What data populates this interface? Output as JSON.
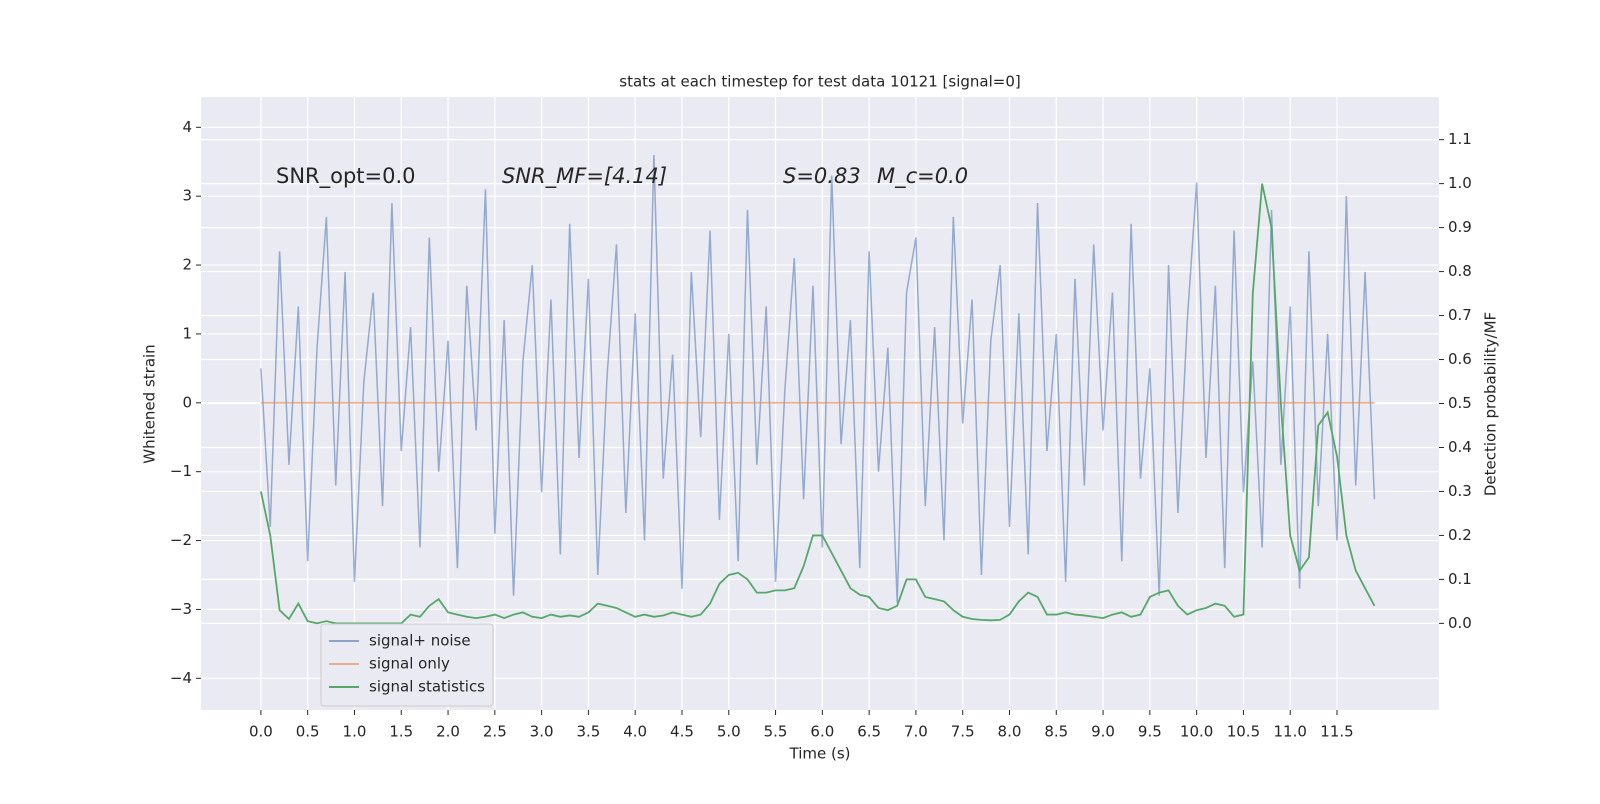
{
  "chart_data": {
    "type": "line",
    "title": "stats at each timestep for test data 10121 [signal=0]",
    "xlabel": "Time (s)",
    "ylabel": "Whitened strain",
    "y2label": "Detection probability/MF",
    "annotations": [
      "SNR_opt=0.0",
      "SNR_MF=[4.14]",
      "S=0.83",
      "M_c=0.0"
    ],
    "x": [
      0.0,
      0.1,
      0.2,
      0.3,
      0.4,
      0.5,
      0.6,
      0.7,
      0.8,
      0.9,
      1.0,
      1.1,
      1.2,
      1.3,
      1.4,
      1.5,
      1.6,
      1.7,
      1.8,
      1.9,
      2.0,
      2.1,
      2.2,
      2.3,
      2.4,
      2.5,
      2.6,
      2.7,
      2.8,
      2.9,
      3.0,
      3.1,
      3.2,
      3.3,
      3.4,
      3.5,
      3.6,
      3.7,
      3.8,
      3.9,
      4.0,
      4.1,
      4.2,
      4.3,
      4.4,
      4.5,
      4.6,
      4.7,
      4.8,
      4.9,
      5.0,
      5.1,
      5.2,
      5.3,
      5.4,
      5.5,
      5.6,
      5.7,
      5.8,
      5.9,
      6.0,
      6.1,
      6.2,
      6.3,
      6.4,
      6.5,
      6.6,
      6.7,
      6.8,
      6.9,
      7.0,
      7.1,
      7.2,
      7.3,
      7.4,
      7.5,
      7.6,
      7.7,
      7.8,
      7.9,
      8.0,
      8.1,
      8.2,
      8.3,
      8.4,
      8.5,
      8.6,
      8.7,
      8.8,
      8.9,
      9.0,
      9.1,
      9.2,
      9.3,
      9.4,
      9.5,
      9.6,
      9.7,
      9.8,
      9.9,
      10.0,
      10.1,
      10.2,
      10.3,
      10.4,
      10.5,
      10.6,
      10.7,
      10.8,
      10.9,
      11.0,
      11.1,
      11.2,
      11.3,
      11.4,
      11.5,
      11.6,
      11.7,
      11.8,
      11.9
    ],
    "series": [
      {
        "name": "signal+ noise",
        "color": "#4c72b0",
        "values": [
          0.5,
          -1.8,
          2.2,
          -0.9,
          1.4,
          -2.3,
          0.8,
          2.7,
          -1.2,
          1.9,
          -2.6,
          0.3,
          1.6,
          -1.5,
          2.9,
          -0.7,
          1.1,
          -2.1,
          2.4,
          -1.0,
          0.9,
          -2.4,
          1.7,
          -0.4,
          3.1,
          -1.9,
          1.2,
          -2.8,
          0.6,
          2.0,
          -1.3,
          1.5,
          -2.2,
          2.6,
          -0.8,
          1.8,
          -2.5,
          0.4,
          2.3,
          -1.6,
          1.3,
          -2.0,
          3.6,
          -1.1,
          0.7,
          -2.7,
          1.9,
          -0.5,
          2.5,
          -1.7,
          1.0,
          -2.3,
          2.8,
          -0.9,
          1.4,
          -2.6,
          0.2,
          2.1,
          -1.4,
          1.7,
          -2.1,
          3.3,
          -0.6,
          1.2,
          -2.4,
          2.2,
          -1.0,
          0.8,
          -2.9,
          1.6,
          2.4,
          -1.5,
          1.1,
          -2.0,
          2.7,
          -0.3,
          1.5,
          -2.5,
          0.9,
          2.0,
          -1.8,
          1.3,
          -2.2,
          2.9,
          -0.7,
          1.0,
          -2.6,
          1.8,
          -1.2,
          2.3,
          -0.4,
          1.6,
          -2.3,
          2.6,
          -1.1,
          0.5,
          -2.8,
          2.0,
          -1.6,
          1.2,
          3.2,
          -0.8,
          1.7,
          -2.4,
          2.5,
          -1.3,
          0.6,
          -2.1,
          2.8,
          -0.9,
          1.4,
          -2.7,
          2.2,
          -1.5,
          1.0,
          -2.0,
          3.0,
          -1.2,
          1.9,
          -1.4
        ]
      },
      {
        "name": "signal only",
        "color": "#dd8452",
        "values": [
          0,
          0,
          0,
          0,
          0,
          0,
          0,
          0,
          0,
          0,
          0,
          0,
          0,
          0,
          0,
          0,
          0,
          0,
          0,
          0,
          0,
          0,
          0,
          0,
          0,
          0,
          0,
          0,
          0,
          0,
          0,
          0,
          0,
          0,
          0,
          0,
          0,
          0,
          0,
          0,
          0,
          0,
          0,
          0,
          0,
          0,
          0,
          0,
          0,
          0,
          0,
          0,
          0,
          0,
          0,
          0,
          0,
          0,
          0,
          0,
          0,
          0,
          0,
          0,
          0,
          0,
          0,
          0,
          0,
          0,
          0,
          0,
          0,
          0,
          0,
          0,
          0,
          0,
          0,
          0,
          0,
          0,
          0,
          0,
          0,
          0,
          0,
          0,
          0,
          0,
          0,
          0,
          0,
          0,
          0,
          0,
          0,
          0,
          0,
          0,
          0,
          0,
          0,
          0,
          0,
          0,
          0,
          0,
          0,
          0,
          0,
          0,
          0,
          0,
          0,
          0,
          0,
          0,
          0,
          0
        ]
      },
      {
        "name": "signal statistics",
        "color": "#55a868",
        "axis": "y2",
        "values": [
          0.3,
          0.2,
          0.03,
          0.01,
          0.045,
          0.005,
          0.0,
          0.005,
          0.0,
          0.0,
          0.0,
          0.0,
          0.0,
          0.0,
          0.0,
          0.0,
          0.02,
          0.015,
          0.04,
          0.055,
          0.025,
          0.02,
          0.015,
          0.012,
          0.015,
          0.02,
          0.012,
          0.02,
          0.025,
          0.015,
          0.012,
          0.02,
          0.015,
          0.018,
          0.015,
          0.025,
          0.045,
          0.04,
          0.035,
          0.025,
          0.015,
          0.02,
          0.015,
          0.018,
          0.025,
          0.02,
          0.015,
          0.02,
          0.045,
          0.09,
          0.11,
          0.115,
          0.1,
          0.07,
          0.07,
          0.075,
          0.075,
          0.08,
          0.13,
          0.2,
          0.2,
          0.16,
          0.12,
          0.08,
          0.065,
          0.06,
          0.035,
          0.03,
          0.04,
          0.1,
          0.1,
          0.06,
          0.055,
          0.05,
          0.03,
          0.015,
          0.01,
          0.008,
          0.007,
          0.008,
          0.02,
          0.05,
          0.07,
          0.06,
          0.02,
          0.02,
          0.025,
          0.02,
          0.018,
          0.015,
          0.012,
          0.02,
          0.025,
          0.015,
          0.02,
          0.06,
          0.07,
          0.075,
          0.04,
          0.02,
          0.03,
          0.035,
          0.045,
          0.04,
          0.015,
          0.02,
          0.75,
          1.0,
          0.9,
          0.5,
          0.2,
          0.12,
          0.15,
          0.45,
          0.48,
          0.38,
          0.2,
          0.12,
          0.08,
          0.04
        ]
      }
    ],
    "xlim": [
      -0.64,
      12.59
    ],
    "xticks": [
      {
        "value": 0,
        "label": "0.0"
      },
      0.5,
      {
        "value": 1,
        "label": "1.0"
      },
      1.5,
      {
        "value": 2,
        "label": "2.0"
      },
      2.5,
      {
        "value": 3,
        "label": "3.0"
      },
      3.5,
      {
        "value": 4,
        "label": "4.0"
      },
      4.5,
      {
        "value": 5,
        "label": "5.0"
      },
      5.5,
      {
        "value": 6,
        "label": "6.0"
      },
      6.5,
      {
        "value": 7,
        "label": "7.0"
      },
      7.5,
      {
        "value": 8,
        "label": "8.0"
      },
      8.5,
      {
        "value": 9,
        "label": "9.0"
      },
      9.5,
      {
        "value": 10,
        "label": "10.0"
      },
      10.5,
      {
        "value": 11,
        "label": "11.0"
      },
      11.5
    ],
    "ylim": [
      -4.46,
      4.44
    ],
    "yticks": [
      {
        "value": -4,
        "label": "−4"
      },
      {
        "value": -3,
        "label": "−3"
      },
      {
        "value": -2,
        "label": "−2"
      },
      {
        "value": -1,
        "label": "−1"
      },
      0,
      1,
      2,
      3,
      4
    ],
    "y2lim": [
      -0.197,
      1.197
    ],
    "y2ticks": [
      {
        "value": 0,
        "label": "0.0"
      },
      0.1,
      0.2,
      0.3,
      0.4,
      0.5,
      0.6,
      0.7,
      0.8,
      0.9,
      {
        "value": 1,
        "label": "1.0"
      },
      1.1
    ],
    "grid": true,
    "legend": "lower left"
  }
}
